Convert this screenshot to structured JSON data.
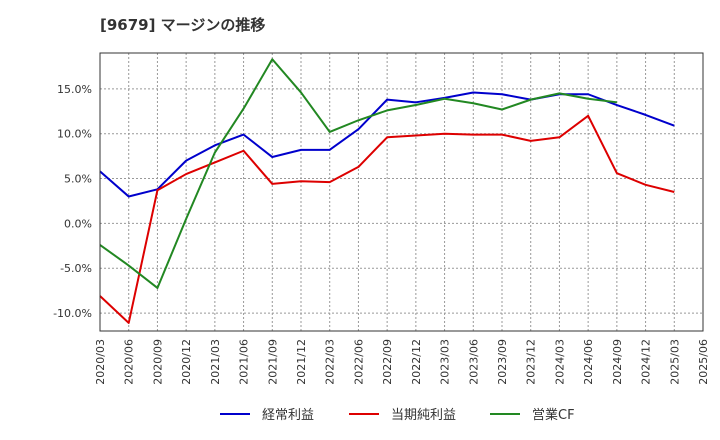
{
  "title": "[9679]  マージンの推移",
  "chart_data": {
    "type": "line",
    "title": "[9679]  マージンの推移",
    "x": [
      "2020/03",
      "2020/06",
      "2020/09",
      "2020/12",
      "2021/03",
      "2021/06",
      "2021/09",
      "2021/12",
      "2022/03",
      "2022/06",
      "2022/09",
      "2022/12",
      "2023/03",
      "2023/06",
      "2023/09",
      "2023/12",
      "2024/03",
      "2024/06",
      "2024/09",
      "2024/12",
      "2025/03",
      "2025/06"
    ],
    "ylim": [
      -12,
      19
    ],
    "y_ticks": [
      -10,
      -5,
      0,
      5,
      10,
      15
    ],
    "y_tick_labels": [
      "-10.0%",
      "-5.0%",
      "0.0%",
      "5.0%",
      "10.0%",
      "15.0%"
    ],
    "grid": true,
    "legend_position": "bottom",
    "series": [
      {
        "name": "経常利益",
        "color": "#0000cc",
        "values": [
          5.8,
          3.0,
          3.8,
          7.0,
          8.7,
          9.9,
          7.4,
          8.2,
          8.2,
          10.5,
          13.8,
          13.5,
          14.0,
          14.6,
          14.4,
          13.8,
          14.4,
          14.4,
          13.2,
          12.1,
          10.9,
          null
        ]
      },
      {
        "name": "当期純利益",
        "color": "#dd0000",
        "values": [
          -8.1,
          -11.1,
          3.7,
          5.5,
          6.8,
          8.1,
          4.4,
          4.7,
          4.6,
          6.3,
          9.6,
          9.8,
          10.0,
          9.9,
          9.9,
          9.2,
          9.6,
          12.0,
          5.6,
          4.3,
          3.5,
          null
        ]
      },
      {
        "name": "営業CF",
        "color": "#228822",
        "values": [
          -2.4,
          -4.7,
          -7.2,
          0.5,
          7.9,
          12.8,
          18.3,
          14.6,
          10.2,
          11.5,
          12.6,
          13.2,
          13.9,
          13.4,
          12.7,
          13.8,
          14.5,
          13.9,
          13.5,
          null,
          null,
          null
        ]
      }
    ]
  }
}
